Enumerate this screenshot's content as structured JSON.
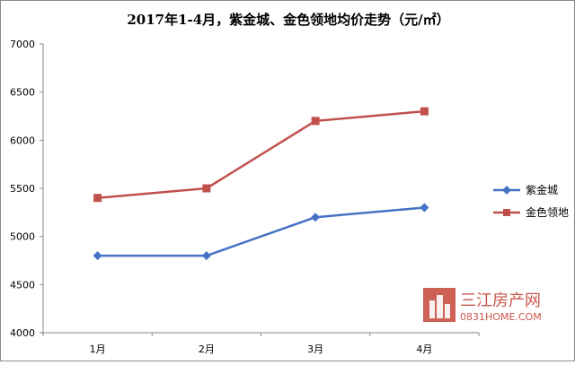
{
  "chart_data": {
    "type": "line",
    "title": "2017年1-4月，紫金城、金色领地均价走势（元/㎡）",
    "categories": [
      "1月",
      "2月",
      "3月",
      "4月"
    ],
    "ylim": [
      4000,
      7000
    ],
    "yticks": [
      4000,
      4500,
      5000,
      5500,
      6000,
      6500,
      7000
    ],
    "grid": false,
    "legend_position": "right",
    "series": [
      {
        "name": "紫金城",
        "values": [
          4800,
          4800,
          5200,
          5300
        ],
        "color": "#4472c4",
        "marker": "diamond"
      },
      {
        "name": "金色领地",
        "values": [
          5400,
          5500,
          6200,
          6300
        ],
        "color": "#c0504d",
        "marker": "square"
      }
    ]
  },
  "watermark": {
    "name": "三江房产网",
    "url": "0831HOME.COM",
    "color": "#c0392b"
  }
}
